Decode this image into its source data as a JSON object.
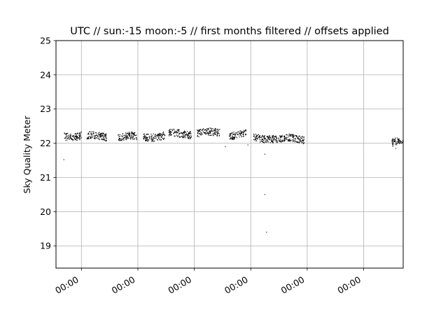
{
  "chart_data": {
    "type": "scatter",
    "title": "UTC // sun:-15 moon:-5 // first months filtered // offsets applied",
    "xlabel": "",
    "ylabel": "Sky Quality Meter",
    "ylim": [
      18.35,
      25
    ],
    "xlim": [
      -0.45,
      5.7
    ],
    "yticks": [
      19,
      20,
      21,
      22,
      23,
      24,
      25
    ],
    "xticks": [
      0,
      1,
      2,
      3,
      4,
      5
    ],
    "xtick_labels": [
      "00:00",
      "00:00",
      "00:00",
      "00:00",
      "00:00",
      "00:00"
    ],
    "grid": true,
    "marker_color": "#000000",
    "clusters": [
      {
        "x": [
          -0.3,
          0.0
        ],
        "y": 22.22
      },
      {
        "x": 0.1,
        "x_end": 0.45,
        "y": 22.2
      },
      {
        "x": 0.65,
        "x_end": 0.98,
        "y": 22.18
      },
      {
        "x": 1.1,
        "x_end": 1.48,
        "y": 22.2
      },
      {
        "x": 1.55,
        "x_end": 1.95,
        "y": 22.28
      },
      {
        "x": 2.05,
        "x_end": 2.45,
        "y": 22.3
      },
      {
        "x": 2.62,
        "x_end": 2.92,
        "y": 22.25
      },
      {
        "x": 3.05,
        "x_end": 3.45,
        "y": 22.15
      },
      {
        "x": 3.45,
        "x_end": 3.95,
        "y": 22.12
      },
      {
        "x": 5.5,
        "x_end": 5.7,
        "y": 22.05
      }
    ],
    "outliers": [
      {
        "x": -0.31,
        "y": 21.52
      },
      {
        "x": 2.55,
        "y": 21.9
      },
      {
        "x": 2.95,
        "y": 21.95
      },
      {
        "x": 3.25,
        "y": 21.68
      },
      {
        "x": 3.25,
        "y": 20.5
      },
      {
        "x": 3.28,
        "y": 19.4
      },
      {
        "x": 5.57,
        "y": 21.85
      }
    ]
  }
}
